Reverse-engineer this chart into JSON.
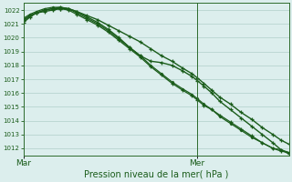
{
  "xlabel": "Pression niveau de la mer( hPa )",
  "background_color": "#dceeed",
  "grid_color": "#b8d4d0",
  "line_color": "#1a5c1a",
  "spine_color": "#2d6b2d",
  "ylim": [
    1011.5,
    1022.5
  ],
  "yticks": [
    1012,
    1013,
    1014,
    1015,
    1016,
    1017,
    1018,
    1019,
    1020,
    1021,
    1022
  ],
  "vline_x": 0.655,
  "series": [
    {
      "x_norm": [
        0.0,
        0.025,
        0.05,
        0.08,
        0.11,
        0.14,
        0.17,
        0.2,
        0.24,
        0.28,
        0.32,
        0.36,
        0.4,
        0.44,
        0.48,
        0.52,
        0.56,
        0.6,
        0.635,
        0.655,
        0.68,
        0.71,
        0.74,
        0.78,
        0.82,
        0.86,
        0.9,
        0.94,
        0.97,
        1.0
      ],
      "y": [
        1021.3,
        1021.6,
        1021.8,
        1021.9,
        1022.0,
        1022.1,
        1022.1,
        1021.9,
        1021.6,
        1021.3,
        1020.9,
        1020.5,
        1020.1,
        1019.7,
        1019.2,
        1018.7,
        1018.3,
        1017.8,
        1017.4,
        1017.1,
        1016.7,
        1016.2,
        1015.7,
        1015.2,
        1014.6,
        1014.1,
        1013.5,
        1013.0,
        1012.6,
        1012.3
      ],
      "marker": "+",
      "lw": 1.0
    },
    {
      "x_norm": [
        0.0,
        0.025,
        0.05,
        0.08,
        0.11,
        0.14,
        0.17,
        0.2,
        0.24,
        0.28,
        0.32,
        0.36,
        0.4,
        0.44,
        0.48,
        0.52,
        0.56,
        0.6,
        0.635,
        0.655,
        0.68,
        0.71,
        0.74,
        0.78,
        0.82,
        0.86,
        0.9,
        0.94,
        0.97,
        1.0
      ],
      "y": [
        1021.1,
        1021.5,
        1021.8,
        1022.0,
        1022.1,
        1022.2,
        1022.1,
        1021.9,
        1021.5,
        1021.1,
        1020.6,
        1020.0,
        1019.3,
        1018.7,
        1018.3,
        1018.2,
        1018.0,
        1017.6,
        1017.2,
        1016.9,
        1016.5,
        1016.0,
        1015.4,
        1014.8,
        1014.2,
        1013.6,
        1013.0,
        1012.4,
        1011.9,
        1011.6
      ],
      "marker": "+",
      "lw": 1.0
    },
    {
      "x_norm": [
        0.0,
        0.025,
        0.05,
        0.08,
        0.11,
        0.14,
        0.17,
        0.2,
        0.24,
        0.28,
        0.32,
        0.36,
        0.4,
        0.44,
        0.48,
        0.52,
        0.56,
        0.6,
        0.635,
        0.655,
        0.68,
        0.71,
        0.74,
        0.78,
        0.82,
        0.86,
        0.9,
        0.94,
        0.97,
        1.0
      ],
      "y": [
        1021.4,
        1021.7,
        1021.9,
        1022.1,
        1022.2,
        1022.2,
        1022.1,
        1021.8,
        1021.4,
        1021.0,
        1020.5,
        1019.9,
        1019.3,
        1018.7,
        1018.0,
        1017.4,
        1016.8,
        1016.3,
        1015.9,
        1015.6,
        1015.2,
        1014.8,
        1014.3,
        1013.8,
        1013.3,
        1012.8,
        1012.4,
        1012.0,
        1011.9,
        1011.7
      ],
      "marker": "D",
      "lw": 0.9,
      "ms": 1.5
    },
    {
      "x_norm": [
        0.0,
        0.025,
        0.05,
        0.08,
        0.11,
        0.14,
        0.17,
        0.2,
        0.24,
        0.28,
        0.32,
        0.36,
        0.4,
        0.44,
        0.48,
        0.52,
        0.56,
        0.6,
        0.635,
        0.655,
        0.68,
        0.71,
        0.74,
        0.78,
        0.82,
        0.86,
        0.9,
        0.94,
        0.97,
        1.0
      ],
      "y": [
        1021.2,
        1021.6,
        1021.8,
        1022.0,
        1022.1,
        1022.1,
        1022.0,
        1021.7,
        1021.3,
        1020.9,
        1020.4,
        1019.8,
        1019.2,
        1018.6,
        1017.9,
        1017.3,
        1016.7,
        1016.2,
        1015.8,
        1015.5,
        1015.1,
        1014.8,
        1014.4,
        1013.9,
        1013.4,
        1012.9,
        1012.4,
        1012.0,
        1011.8,
        1011.7
      ],
      "marker": "+",
      "lw": 0.9,
      "ms": 3.0
    }
  ]
}
